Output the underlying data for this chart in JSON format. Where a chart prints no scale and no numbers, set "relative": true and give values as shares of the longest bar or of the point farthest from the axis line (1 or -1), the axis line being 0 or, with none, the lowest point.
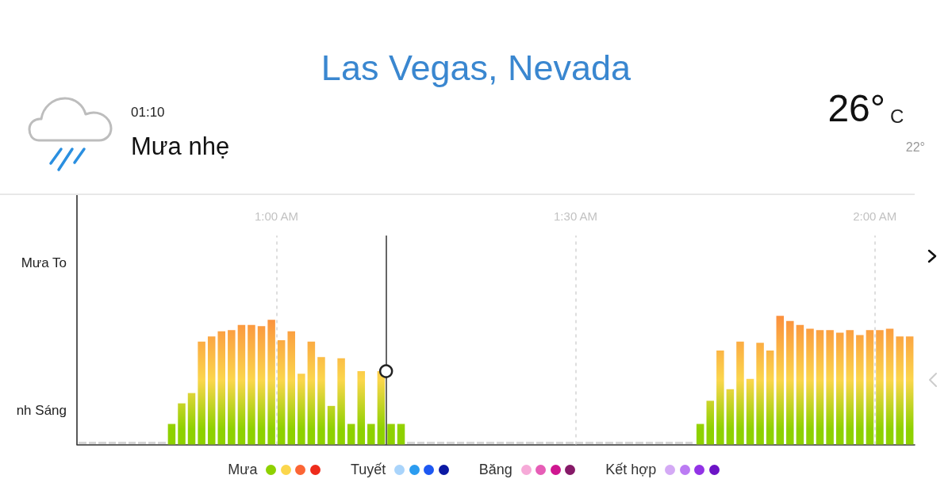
{
  "chart_data": {
    "type": "bar",
    "title": "Las Vegas, Nevada",
    "annotations": [
      "01:10",
      "Mưa nhẹ",
      "26°",
      "C",
      "22°",
      "Mưa To",
      "nh Sáng"
    ],
    "x": [
      0.675,
      0.6917,
      0.7083,
      0.725,
      0.7417,
      0.7583,
      0.775,
      0.7917,
      0.8083,
      0.825,
      0.8417,
      0.8583,
      0.875,
      0.8917,
      0.9083,
      0.925,
      0.9417,
      0.9583,
      0.975,
      0.9917,
      1.0083,
      1.025,
      1.0417,
      1.0583,
      1.075,
      1.0917,
      1.1083,
      1.125,
      1.1417,
      1.1583,
      1.175,
      1.1917,
      1.2083,
      1.225,
      1.2417,
      1.2583,
      1.275,
      1.2917,
      1.3083,
      1.325,
      1.3417,
      1.3583,
      1.375,
      1.3917,
      1.4083,
      1.425,
      1.4417,
      1.4583,
      1.475,
      1.4917,
      1.5083,
      1.525,
      1.5417,
      1.5583,
      1.575,
      1.5917,
      1.6083,
      1.625,
      1.6417,
      1.6583,
      1.675,
      1.6917,
      1.7083,
      1.725,
      1.7417,
      1.7583,
      1.775,
      1.7917,
      1.8083,
      1.825,
      1.8417,
      1.8583,
      1.875,
      1.8917,
      1.9083,
      1.925,
      1.9417,
      1.9583,
      1.975,
      1.9917,
      2.0083,
      2.025,
      2.0417,
      2.0583
    ],
    "series": [
      {
        "name": "Mưa",
        "color": "#8ed100",
        "values": [
          0,
          0,
          0,
          0,
          0,
          0,
          0,
          0,
          0,
          0.16,
          0.32,
          0.4,
          0.8,
          0.84,
          0.88,
          0.89,
          0.93,
          0.93,
          0.92,
          0.97,
          0.81,
          0.88,
          0.55,
          0.8,
          0.68,
          0.3,
          0.67,
          0.16,
          0.57,
          0.16,
          0.57,
          0.16,
          0.16,
          0,
          0,
          0,
          0,
          0,
          0,
          0,
          0,
          0,
          0,
          0,
          0,
          0,
          0,
          0,
          0,
          0,
          0,
          0,
          0,
          0,
          0,
          0,
          0,
          0,
          0,
          0,
          0,
          0,
          0.16,
          0.34,
          0.73,
          0.43,
          0.8,
          0.51,
          0.79,
          0.73,
          1,
          0.96,
          0.93,
          0.9,
          0.89,
          0.89,
          0.87,
          0.89,
          0.85,
          0.89,
          0.89,
          0.9,
          0.84,
          0.84
        ]
      },
      {
        "name": "Tuyết",
        "color": "#a9d4fb",
        "values": [
          null,
          null,
          null,
          null,
          null,
          null,
          null,
          null,
          null,
          null,
          null,
          null,
          null,
          null,
          null,
          null,
          null,
          null,
          null,
          null,
          null,
          null,
          null,
          null,
          null,
          null,
          null,
          null,
          null,
          null,
          null,
          null,
          null,
          null,
          null,
          null,
          null,
          null,
          null,
          null,
          null,
          null,
          null,
          null,
          null,
          null,
          null,
          null,
          null,
          null,
          null,
          null,
          null,
          null,
          null,
          null,
          null,
          null,
          null,
          null,
          null,
          null,
          null,
          null,
          null,
          null,
          null,
          null,
          null,
          null,
          null,
          null,
          null,
          null,
          null,
          null,
          null,
          null,
          null,
          null,
          null,
          null,
          null,
          null
        ]
      },
      {
        "name": "Băng",
        "color": "#f6aad8",
        "values": [
          null,
          null,
          null,
          null,
          null,
          null,
          null,
          null,
          null,
          null,
          null,
          null,
          null,
          null,
          null,
          null,
          null,
          null,
          null,
          null,
          null,
          null,
          null,
          null,
          null,
          null,
          null,
          null,
          null,
          null,
          null,
          null,
          null,
          null,
          null,
          null,
          null,
          null,
          null,
          null,
          null,
          null,
          null,
          null,
          null,
          null,
          null,
          null,
          null,
          null,
          null,
          null,
          null,
          null,
          null,
          null,
          null,
          null,
          null,
          null,
          null,
          null,
          null,
          null,
          null,
          null,
          null,
          null,
          null,
          null,
          null,
          null,
          null,
          null,
          null,
          null,
          null,
          null,
          null,
          null,
          null,
          null,
          null,
          null
        ]
      },
      {
        "name": "Kết hợp",
        "color": "#d4aaf5",
        "values": [
          null,
          null,
          null,
          null,
          null,
          null,
          null,
          null,
          null,
          null,
          null,
          null,
          null,
          null,
          null,
          null,
          null,
          null,
          null,
          null,
          null,
          null,
          null,
          null,
          null,
          null,
          null,
          null,
          null,
          null,
          null,
          null,
          null,
          null,
          null,
          null,
          null,
          null,
          null,
          null,
          null,
          null,
          null,
          null,
          null,
          null,
          null,
          null,
          null,
          null,
          null,
          null,
          null,
          null,
          null,
          null,
          null,
          null,
          null,
          null,
          null,
          null,
          null,
          null,
          null,
          null,
          null,
          null,
          null,
          null,
          null,
          null,
          null,
          null,
          null,
          null,
          null,
          null,
          null,
          null,
          null,
          null,
          null,
          null
        ]
      },
      {
        "type": "scatter",
        "x": [
          1.1833
        ],
        "values": [
          0.57
        ],
        "color": "#222222"
      }
    ],
    "relative": true,
    "xlim": [
      0.6667,
      2.0667
    ],
    "xticks": [
      {
        "value": 1,
        "label": "1:00 AM"
      },
      {
        "value": 1.5,
        "label": "1:30 AM"
      },
      {
        "value": 2,
        "label": "2:00 AM"
      }
    ],
    "grid": "x",
    "legend": "bottom",
    "marker": "circle",
    "ref_lines": [
      {
        "axis": "x",
        "value": 1.1833,
        "color": "#333333"
      }
    ]
  }
}
